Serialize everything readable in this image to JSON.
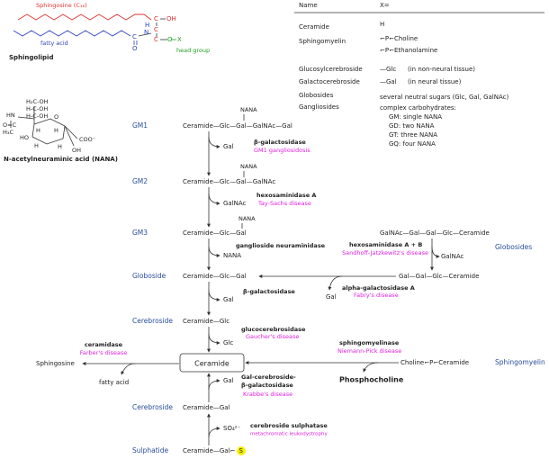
{
  "sphingolipid": {
    "sphingosine_label": "Sphingosine (C₁₈)",
    "fatty_acid_label": "fatty acid",
    "head_group_label": "head group",
    "title": "Sphingolipid",
    "atoms": [
      "C",
      "OH",
      "H",
      "N",
      "C",
      "C",
      "O",
      "O",
      "X"
    ]
  },
  "table": {
    "header": [
      "Name",
      "X="
    ],
    "rows": [
      [
        "Ceramide",
        "H"
      ],
      [
        "Sphingomyelin",
        "⌐P⌐Choline",
        "⌐P⌐Ethanolamine"
      ],
      [
        "Glucosylcerebroside",
        "—Glc",
        "(in non-neural tissue)"
      ],
      [
        "Galactocerebroside",
        "—Gal",
        "(in neural tissue)"
      ],
      [
        "Globosides",
        "several neutral sugars (Glc, Gal, GalNAc)"
      ],
      [
        "Gangliosides",
        "complex carbohydrates:",
        "GM: single NANA",
        "GD: two NANA",
        "GT: three NANA",
        "GQ: four NANA"
      ]
    ]
  },
  "nana": {
    "title": "N-acetylneuraminic acid (NANA)",
    "atoms": [
      "H₂C-OH",
      "H-C-OH",
      "HN",
      "H-C-OH",
      "O=C",
      "H₃C",
      "HO",
      "H",
      "H",
      "O",
      "H",
      "COO⁻",
      "OH",
      "H"
    ]
  },
  "pathway": {
    "labels": [
      "GM1",
      "GM2",
      "GM3",
      "Globoside",
      "Cerebroside",
      "Cerebroside",
      "Sulphatide"
    ],
    "compounds": [
      "Ceramide—Glc—Gal—GalNAc—Gal",
      "Ceramide—Glc—Gal—GalNAc",
      "Ceramide—Glc—Gal",
      "Ceramide—Glc—Gal",
      "Ceramide—Glc",
      "Ceramide—Gal",
      "Ceramide—Gal⌐",
      "S"
    ],
    "nana_branches": [
      "NANA",
      "NANA",
      "NANA"
    ],
    "ceramide": "Ceramide",
    "products": [
      "Gal",
      "GalNAc",
      "NANA",
      "Gal",
      "Glc",
      "Gal",
      "SO₄²⁻"
    ],
    "enzymes": [
      {
        "name": "β-galactosidase",
        "disease": "GM1 gangliosidosis"
      },
      {
        "name": "hexosaminidase A",
        "disease": "Tay-Sachs disease"
      },
      {
        "name": "ganglioside neuraminidase"
      },
      {
        "name": "β-galactosidase"
      },
      {
        "name": "glucocerebrosidase",
        "disease": "Gaucher's disease"
      },
      {
        "name": "Gal-cerebroside-",
        "name2": "β-galactosidase",
        "disease": "Krabbe's disease"
      },
      {
        "name": "cerebroside sulphatase",
        "disease": "metachromatic leukodystrophy"
      },
      {
        "name": "ceramidase",
        "disease": "Farber's disease"
      },
      {
        "name": "sphingomyelinase",
        "disease": "Niemann-Pick disease"
      },
      {
        "name": "hexosaminidase A + B",
        "disease": "Sandhoff-Jatzkewitz's disease"
      },
      {
        "name": "alpha-galactosidase A",
        "disease": "Fabry's disease"
      }
    ],
    "side": {
      "sphingosine": "Sphingosine",
      "fatty_acid": "fatty acid",
      "sphingomyelin_compound": "Choline⌐P⌐Ceramide",
      "sphingomyelin_label": "Sphingomyelin",
      "phosphocholine": "Phosphocholine",
      "globoside_compound": "GalNAc—Gal—Gal—Glc—Ceramide",
      "globosides_label": "Globosides",
      "galnac": "GalNAc",
      "globoside2": "Gal—Gal—Glc—Ceramide",
      "gal": "Gal"
    }
  }
}
